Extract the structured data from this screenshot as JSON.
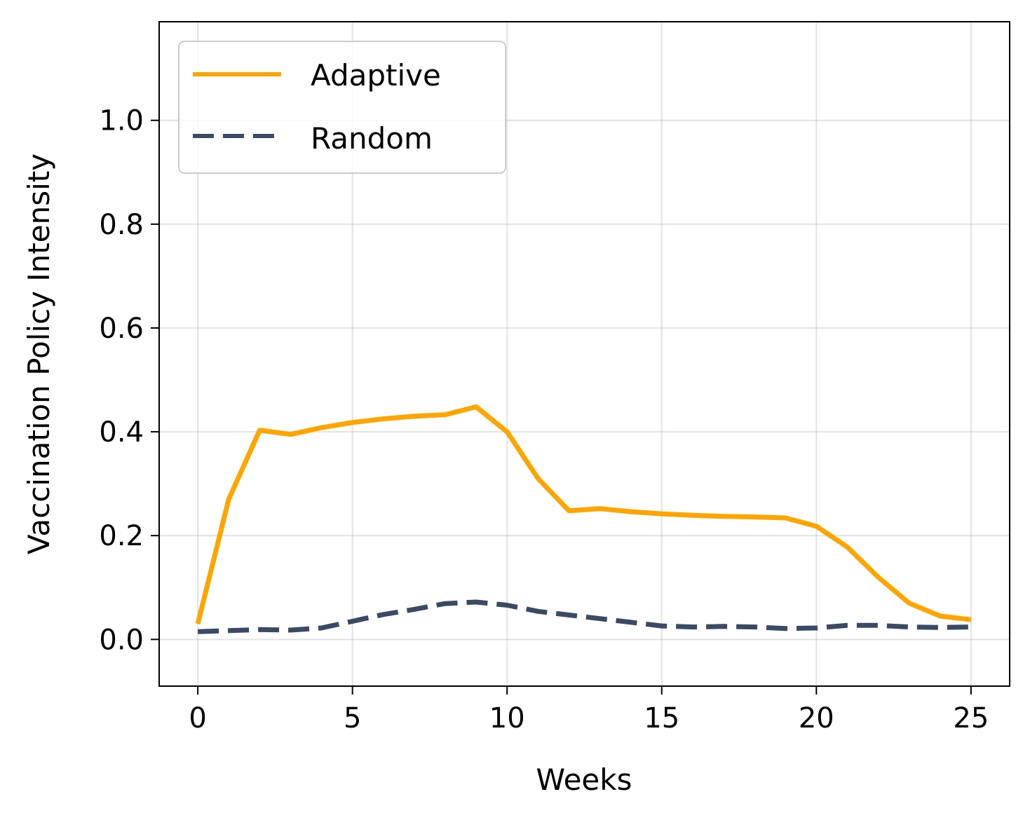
{
  "chart_data": {
    "type": "line",
    "title": "",
    "xlabel": "Weeks",
    "ylabel": "Vaccination Policy Intensity",
    "xlim": [
      -1.25,
      26.25
    ],
    "ylim": [
      -0.09,
      1.19
    ],
    "xticks": [
      0,
      5,
      10,
      15,
      20,
      25
    ],
    "yticks": [
      0.0,
      0.2,
      0.4,
      0.6,
      0.8,
      1.0
    ],
    "xtick_labels": [
      "0",
      "5",
      "10",
      "15",
      "20",
      "25"
    ],
    "ytick_labels": [
      "0.0",
      "0.2",
      "0.4",
      "0.6",
      "0.8",
      "1.0"
    ],
    "grid": true,
    "legend_position": "top-left",
    "x": [
      0,
      1,
      2,
      3,
      4,
      5,
      6,
      7,
      8,
      9,
      10,
      11,
      12,
      13,
      14,
      15,
      16,
      17,
      18,
      19,
      20,
      21,
      22,
      23,
      24,
      25
    ],
    "series": [
      {
        "name": "Adaptive",
        "color": "#FFA500",
        "style": "solid",
        "values": [
          0.03,
          0.27,
          0.403,
          0.395,
          0.408,
          0.418,
          0.425,
          0.43,
          0.433,
          0.448,
          0.4,
          0.31,
          0.248,
          0.252,
          0.246,
          0.242,
          0.239,
          0.237,
          0.236,
          0.234,
          0.218,
          0.178,
          0.12,
          0.07,
          0.045,
          0.038
        ]
      },
      {
        "name": "Random",
        "color": "#3A4A63",
        "style": "dashed",
        "values": [
          0.015,
          0.017,
          0.019,
          0.018,
          0.022,
          0.035,
          0.048,
          0.058,
          0.069,
          0.072,
          0.066,
          0.054,
          0.047,
          0.04,
          0.033,
          0.026,
          0.024,
          0.025,
          0.024,
          0.021,
          0.022,
          0.027,
          0.027,
          0.024,
          0.023,
          0.024
        ]
      }
    ]
  }
}
